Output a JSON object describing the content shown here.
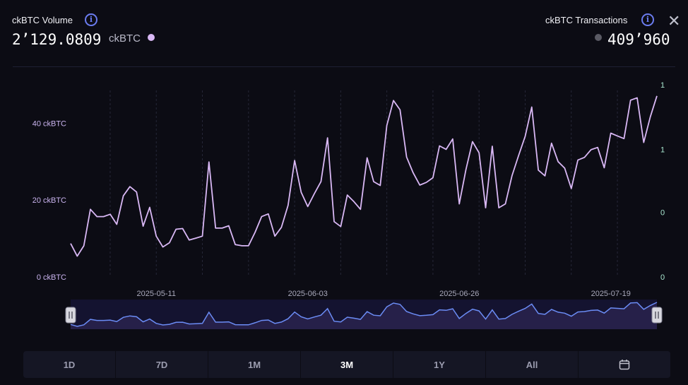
{
  "header": {
    "volume_label": "ckBTC Volume",
    "volume_value": "2’129.0809",
    "volume_unit": "ckBTC",
    "transactions_label": "ckBTC Transactions",
    "transactions_value": "409’960",
    "info_glyph": "i",
    "close_glyph": "✕"
  },
  "colors": {
    "volume": "#d9b8f5",
    "transactions_dot": "#5a5a64",
    "accent": "#6b7cf0",
    "navigator": "#6b8cf5"
  },
  "range": {
    "buttons": [
      "1D",
      "7D",
      "1M",
      "3M",
      "1Y",
      "All"
    ],
    "active": "3M",
    "calendar_icon": "calendar-icon"
  },
  "chart_data": {
    "type": "line",
    "start_date": "2025-04-28",
    "x_ticks": [
      "2025-05-11",
      "2025-06-03",
      "2025-06-26",
      "2025-07-19"
    ],
    "y_left_ticks": [
      "0 ckBTC",
      "20 ckBTC",
      "40 ckBTC"
    ],
    "y_left_values": [
      0,
      20,
      40
    ],
    "y_left_range": [
      0,
      50
    ],
    "y_right_ticks": [
      "0",
      "0",
      "1",
      "1"
    ],
    "y_right_fractions": [
      0,
      0.42,
      0.83,
      1.25
    ],
    "series": [
      {
        "name": "ckBTC Volume",
        "values": [
          8.7,
          5.4,
          8.1,
          17.6,
          15.7,
          15.7,
          16.3,
          13.7,
          21.1,
          23.5,
          22.1,
          13.2,
          18.1,
          10.6,
          7.8,
          8.9,
          12.4,
          12.6,
          9.6,
          10.1,
          10.6,
          29.9,
          12.7,
          12.7,
          13.3,
          8.4,
          8.1,
          8.1,
          11.6,
          15.7,
          16.4,
          10.6,
          12.9,
          18.6,
          30.3,
          22.0,
          18.3,
          21.7,
          24.8,
          36.2,
          14.4,
          13.1,
          21.3,
          19.6,
          17.6,
          31.0,
          24.8,
          23.8,
          39.4,
          45.9,
          43.5,
          31.2,
          27.1,
          23.9,
          24.6,
          25.8,
          34.1,
          33.2,
          35.9,
          19.0,
          27.9,
          35.2,
          32.3,
          18.0,
          34.0,
          18.0,
          19.0,
          26.3,
          31.6,
          36.6,
          44.2,
          27.8,
          26.3,
          34.8,
          30.0,
          28.3,
          23.0,
          30.4,
          31.1,
          33.1,
          33.7,
          28.4,
          37.4,
          36.7,
          36.0,
          46.0,
          46.6,
          35.0,
          41.7,
          47.1
        ]
      }
    ]
  }
}
